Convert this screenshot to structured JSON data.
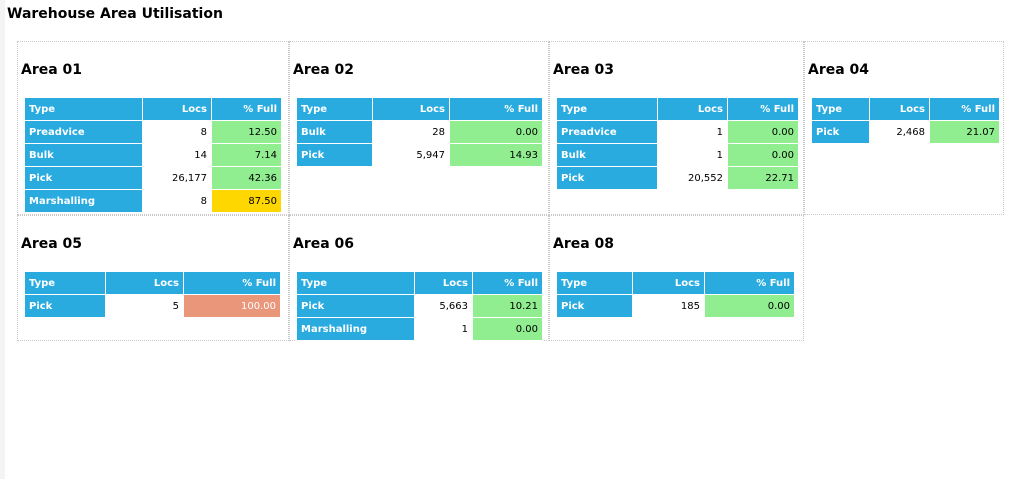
{
  "title": "Warehouse Area Utilisation",
  "colors": {
    "header_blue": "#29abe0",
    "ok_green": "#90ee90",
    "warn_yellow": "#ffd700",
    "full_salmon": "#e9967a"
  },
  "columns": [
    "Type",
    "Locs",
    "% Full"
  ],
  "areas": [
    {
      "name": "Area 01",
      "rows": [
        {
          "type": "Preadvice",
          "locs": "8",
          "pct": "12.50",
          "status": "ok"
        },
        {
          "type": "Bulk",
          "locs": "14",
          "pct": "7.14",
          "status": "ok"
        },
        {
          "type": "Pick",
          "locs": "26,177",
          "pct": "42.36",
          "status": "ok"
        },
        {
          "type": "Marshalling",
          "locs": "8",
          "pct": "87.50",
          "status": "warn"
        }
      ]
    },
    {
      "name": "Area 02",
      "rows": [
        {
          "type": "Bulk",
          "locs": "28",
          "pct": "0.00",
          "status": "ok"
        },
        {
          "type": "Pick",
          "locs": "5,947",
          "pct": "14.93",
          "status": "ok"
        }
      ]
    },
    {
      "name": "Area 03",
      "rows": [
        {
          "type": "Preadvice",
          "locs": "1",
          "pct": "0.00",
          "status": "ok"
        },
        {
          "type": "Bulk",
          "locs": "1",
          "pct": "0.00",
          "status": "ok"
        },
        {
          "type": "Pick",
          "locs": "20,552",
          "pct": "22.71",
          "status": "ok"
        }
      ]
    },
    {
      "name": "Area 04",
      "rows": [
        {
          "type": "Pick",
          "locs": "2,468",
          "pct": "21.07",
          "status": "ok"
        }
      ]
    },
    {
      "name": "Area 05",
      "rows": [
        {
          "type": "Pick",
          "locs": "5",
          "pct": "100.00",
          "status": "full"
        }
      ]
    },
    {
      "name": "Area 06",
      "rows": [
        {
          "type": "Pick",
          "locs": "5,663",
          "pct": "10.21",
          "status": "ok"
        },
        {
          "type": "Marshalling",
          "locs": "1",
          "pct": "0.00",
          "status": "ok"
        }
      ]
    },
    {
      "name": "Area 08",
      "rows": [
        {
          "type": "Pick",
          "locs": "185",
          "pct": "0.00",
          "status": "ok"
        }
      ]
    }
  ]
}
